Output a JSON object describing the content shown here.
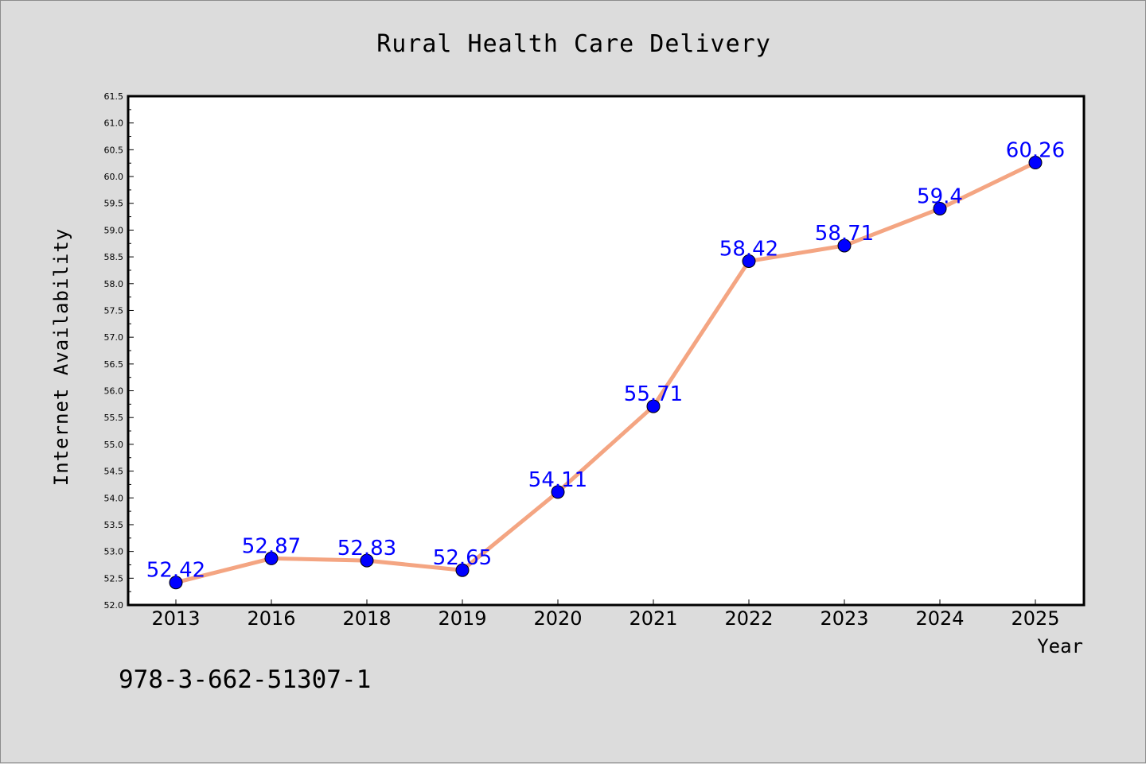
{
  "footer": "978-3-662-51307-1",
  "colors": {
    "line": "#f4a582",
    "marker": "#0000ff",
    "label": "#0000ff",
    "background": "#dcdcdc",
    "plot_background": "#ffffff"
  },
  "chart_data": {
    "type": "line",
    "title": "Rural Health Care Delivery",
    "xlabel": "Year",
    "ylabel": "Internet Availability",
    "categories": [
      "2013",
      "2016",
      "2018",
      "2019",
      "2020",
      "2021",
      "2022",
      "2023",
      "2024",
      "2025"
    ],
    "values": [
      52.42,
      52.87,
      52.83,
      52.65,
      54.11,
      55.71,
      58.42,
      58.71,
      59.4,
      60.26
    ],
    "data_labels": [
      "52.42",
      "52.87",
      "52.83",
      "52.65",
      "54.11",
      "55.71",
      "58.42",
      "58.71",
      "59.4",
      "60.26"
    ],
    "ylim": [
      52.0,
      61.5
    ],
    "yticks": [
      "52.0",
      "52.5",
      "53.0",
      "53.5",
      "54.0",
      "54.5",
      "55.0",
      "55.5",
      "56.0",
      "56.5",
      "57.0",
      "57.5",
      "58.0",
      "58.5",
      "59.0",
      "59.5",
      "60.0",
      "60.5",
      "61.0",
      "61.5"
    ],
    "grid": false,
    "legend": "none"
  }
}
